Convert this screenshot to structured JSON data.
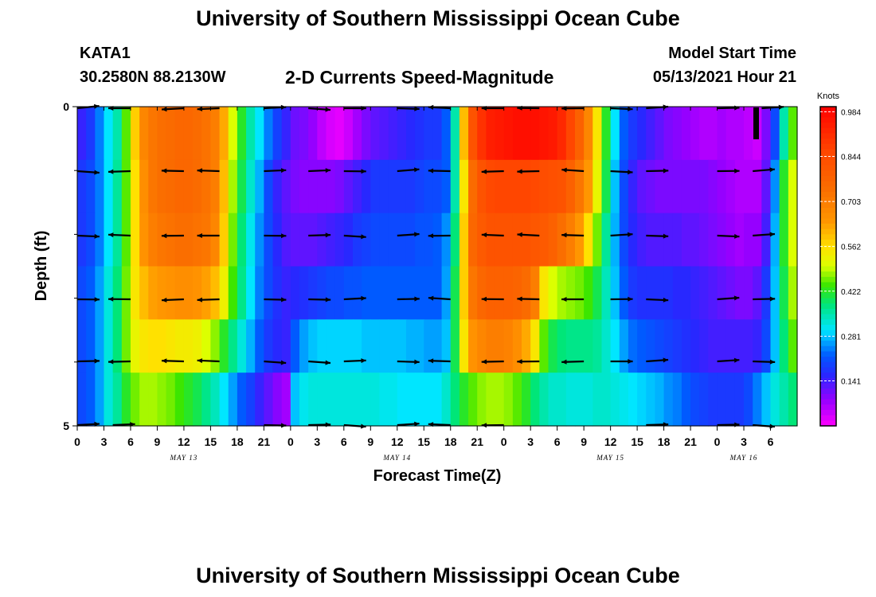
{
  "header": {
    "title": "University of Southern Mississippi Ocean Cube",
    "station_id": "KATA1",
    "coordinates": "30.2580N  88.2130W",
    "model_start_label": "Model Start Time",
    "model_start_value": "05/13/2021 Hour 21"
  },
  "footer": {
    "title": "University of Southern Mississippi Ocean Cube"
  },
  "chart_data": {
    "type": "heatmap",
    "title": "2-D Currents Speed-Magnitude",
    "xlabel": "Forecast Time(Z)",
    "ylabel": "Depth (ft)",
    "x_range_hours": [
      0,
      81
    ],
    "y_range_ft": [
      0,
      5
    ],
    "x_tick_labels": [
      "0",
      "3",
      "6",
      "9",
      "12",
      "15",
      "18",
      "21",
      "0",
      "3",
      "6",
      "9",
      "12",
      "15",
      "18",
      "21",
      "0",
      "3",
      "6",
      "9",
      "12",
      "15",
      "18",
      "21",
      "0",
      "3",
      "6"
    ],
    "y_tick_labels": [
      "0",
      "5"
    ],
    "date_labels": [
      {
        "label": "MAY 13",
        "hour": 12
      },
      {
        "label": "MAY 14",
        "hour": 36
      },
      {
        "label": "MAY 15",
        "hour": 60
      },
      {
        "label": "MAY 16",
        "hour": 75
      }
    ],
    "colorbar": {
      "units": "Knots",
      "tick_labels": [
        "0.984",
        "0.844",
        "0.703",
        "0.562",
        "0.422",
        "0.281",
        "0.141"
      ],
      "tick_values": [
        0.984,
        0.844,
        0.703,
        0.562,
        0.422,
        0.281,
        0.141
      ],
      "range": [
        0.0,
        1.0
      ]
    },
    "speed_rows_note": "rows are depth layers top to bottom, columns are forecast hours 0..80",
    "speed_rows": [
      [
        0.15,
        0.18,
        0.24,
        0.3,
        0.35,
        0.45,
        0.58,
        0.68,
        0.72,
        0.74,
        0.75,
        0.76,
        0.76,
        0.75,
        0.73,
        0.7,
        0.62,
        0.5,
        0.42,
        0.35,
        0.3,
        0.24,
        0.19,
        0.15,
        0.11,
        0.1,
        0.08,
        0.05,
        0.03,
        0.02,
        0.04,
        0.07,
        0.1,
        0.12,
        0.13,
        0.14,
        0.15,
        0.16,
        0.17,
        0.18,
        0.18,
        0.22,
        0.35,
        0.6,
        0.82,
        0.9,
        0.94,
        0.95,
        0.96,
        0.97,
        0.97,
        0.97,
        0.96,
        0.95,
        0.92,
        0.86,
        0.78,
        0.68,
        0.55,
        0.42,
        0.3,
        0.22,
        0.18,
        0.16,
        0.14,
        0.12,
        0.1,
        0.09,
        0.08,
        0.07,
        0.06,
        0.06,
        0.07,
        0.06,
        0.06,
        0.05,
        0.04,
        0.1,
        0.2,
        0.35,
        0.45
      ],
      [
        0.18,
        0.2,
        0.24,
        0.3,
        0.36,
        0.45,
        0.56,
        0.66,
        0.72,
        0.74,
        0.75,
        0.76,
        0.76,
        0.75,
        0.73,
        0.7,
        0.6,
        0.48,
        0.4,
        0.33,
        0.27,
        0.2,
        0.15,
        0.12,
        0.1,
        0.09,
        0.09,
        0.09,
        0.09,
        0.1,
        0.12,
        0.14,
        0.16,
        0.18,
        0.18,
        0.18,
        0.18,
        0.18,
        0.19,
        0.2,
        0.2,
        0.22,
        0.35,
        0.55,
        0.75,
        0.82,
        0.85,
        0.86,
        0.86,
        0.86,
        0.86,
        0.85,
        0.84,
        0.83,
        0.82,
        0.78,
        0.72,
        0.64,
        0.52,
        0.4,
        0.28,
        0.2,
        0.15,
        0.12,
        0.11,
        0.1,
        0.1,
        0.1,
        0.1,
        0.1,
        0.1,
        0.09,
        0.08,
        0.07,
        0.06,
        0.06,
        0.06,
        0.12,
        0.25,
        0.42,
        0.5
      ],
      [
        0.18,
        0.2,
        0.24,
        0.3,
        0.36,
        0.45,
        0.56,
        0.65,
        0.7,
        0.72,
        0.73,
        0.74,
        0.74,
        0.73,
        0.72,
        0.68,
        0.58,
        0.46,
        0.38,
        0.31,
        0.25,
        0.2,
        0.16,
        0.13,
        0.12,
        0.12,
        0.12,
        0.13,
        0.14,
        0.15,
        0.16,
        0.18,
        0.19,
        0.2,
        0.2,
        0.2,
        0.2,
        0.2,
        0.21,
        0.21,
        0.22,
        0.25,
        0.38,
        0.58,
        0.76,
        0.8,
        0.82,
        0.82,
        0.82,
        0.82,
        0.82,
        0.81,
        0.8,
        0.78,
        0.74,
        0.7,
        0.64,
        0.56,
        0.46,
        0.36,
        0.27,
        0.2,
        0.16,
        0.14,
        0.13,
        0.13,
        0.13,
        0.13,
        0.12,
        0.12,
        0.11,
        0.1,
        0.09,
        0.08,
        0.07,
        0.08,
        0.08,
        0.14,
        0.27,
        0.42,
        0.5
      ],
      [
        0.2,
        0.22,
        0.26,
        0.32,
        0.38,
        0.46,
        0.55,
        0.6,
        0.63,
        0.64,
        0.65,
        0.66,
        0.66,
        0.65,
        0.63,
        0.6,
        0.53,
        0.44,
        0.37,
        0.3,
        0.24,
        0.2,
        0.17,
        0.15,
        0.16,
        0.17,
        0.18,
        0.19,
        0.2,
        0.2,
        0.21,
        0.21,
        0.22,
        0.22,
        0.22,
        0.22,
        0.22,
        0.22,
        0.22,
        0.22,
        0.22,
        0.26,
        0.4,
        0.58,
        0.72,
        0.76,
        0.78,
        0.78,
        0.78,
        0.77,
        0.75,
        0.7,
        0.55,
        0.5,
        0.48,
        0.47,
        0.46,
        0.44,
        0.4,
        0.34,
        0.28,
        0.22,
        0.18,
        0.17,
        0.17,
        0.17,
        0.17,
        0.16,
        0.16,
        0.15,
        0.14,
        0.13,
        0.12,
        0.11,
        0.1,
        0.1,
        0.12,
        0.18,
        0.28,
        0.4,
        0.48
      ],
      [
        0.2,
        0.22,
        0.26,
        0.32,
        0.38,
        0.46,
        0.52,
        0.55,
        0.56,
        0.56,
        0.55,
        0.54,
        0.54,
        0.53,
        0.5,
        0.47,
        0.42,
        0.37,
        0.32,
        0.27,
        0.22,
        0.18,
        0.16,
        0.15,
        0.22,
        0.26,
        0.28,
        0.29,
        0.29,
        0.29,
        0.29,
        0.29,
        0.28,
        0.28,
        0.28,
        0.28,
        0.28,
        0.27,
        0.27,
        0.26,
        0.26,
        0.28,
        0.4,
        0.55,
        0.65,
        0.68,
        0.7,
        0.7,
        0.69,
        0.66,
        0.62,
        0.55,
        0.45,
        0.4,
        0.38,
        0.37,
        0.37,
        0.37,
        0.36,
        0.33,
        0.3,
        0.26,
        0.23,
        0.22,
        0.21,
        0.2,
        0.19,
        0.18,
        0.17,
        0.16,
        0.15,
        0.14,
        0.14,
        0.14,
        0.14,
        0.14,
        0.15,
        0.2,
        0.28,
        0.38,
        0.45
      ],
      [
        0.2,
        0.22,
        0.26,
        0.32,
        0.36,
        0.42,
        0.46,
        0.48,
        0.48,
        0.47,
        0.46,
        0.44,
        0.42,
        0.4,
        0.37,
        0.34,
        0.3,
        0.26,
        0.22,
        0.19,
        0.15,
        0.12,
        0.09,
        0.07,
        0.28,
        0.31,
        0.32,
        0.32,
        0.32,
        0.32,
        0.32,
        0.32,
        0.32,
        0.32,
        0.31,
        0.31,
        0.3,
        0.3,
        0.3,
        0.3,
        0.3,
        0.33,
        0.38,
        0.42,
        0.45,
        0.47,
        0.48,
        0.48,
        0.47,
        0.45,
        0.42,
        0.38,
        0.35,
        0.33,
        0.33,
        0.32,
        0.32,
        0.32,
        0.33,
        0.33,
        0.32,
        0.31,
        0.3,
        0.29,
        0.28,
        0.27,
        0.25,
        0.24,
        0.22,
        0.2,
        0.19,
        0.18,
        0.18,
        0.18,
        0.18,
        0.2,
        0.24,
        0.28,
        0.32,
        0.35,
        0.38
      ]
    ],
    "vectors": [
      {
        "row": 0,
        "hours": [
          0,
          6,
          12,
          16,
          21,
          26,
          30,
          36,
          42,
          48,
          52,
          57,
          60,
          64,
          72,
          77
        ]
      },
      {
        "row": 1,
        "hours": [
          0,
          6,
          12,
          16,
          21,
          26,
          30,
          36,
          42,
          48,
          52,
          57,
          60,
          64,
          72,
          76
        ]
      },
      {
        "row": 2,
        "hours": [
          0,
          6,
          12,
          16,
          21,
          26,
          30,
          36,
          42,
          48,
          52,
          57,
          60,
          64,
          72,
          76
        ]
      },
      {
        "row": 3,
        "hours": [
          0,
          6,
          12,
          16,
          21,
          26,
          30,
          36,
          42,
          48,
          52,
          57,
          60,
          64,
          72,
          76
        ]
      },
      {
        "row": 4,
        "hours": [
          0,
          6,
          12,
          16,
          21,
          26,
          30,
          36,
          42,
          48,
          52,
          57,
          60,
          64,
          72,
          76
        ]
      },
      {
        "row": 5,
        "hours": [
          0,
          4,
          21,
          26,
          30,
          36,
          42,
          48,
          64,
          72,
          76
        ]
      }
    ]
  }
}
